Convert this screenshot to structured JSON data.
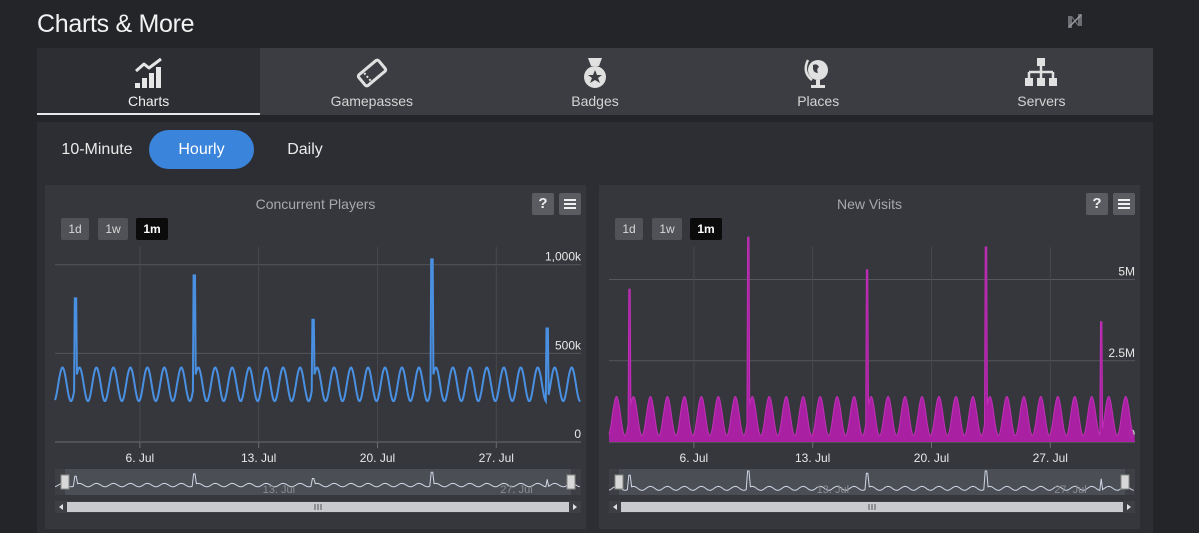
{
  "header": {
    "title": "Charts & More",
    "logo_icon": "n-logo-icon"
  },
  "tabs": [
    {
      "label": "Charts",
      "icon": "bar-chart-icon",
      "active": true
    },
    {
      "label": "Gamepasses",
      "icon": "ticket-icon",
      "active": false
    },
    {
      "label": "Badges",
      "icon": "medal-icon",
      "active": false
    },
    {
      "label": "Places",
      "icon": "globe-icon",
      "active": false
    },
    {
      "label": "Servers",
      "icon": "sitemap-icon",
      "active": false
    }
  ],
  "intervals": [
    {
      "label": "10-Minute",
      "active": false
    },
    {
      "label": "Hourly",
      "active": true
    },
    {
      "label": "Daily",
      "active": false
    }
  ],
  "ranges": [
    "1d",
    "1w",
    "1m"
  ],
  "active_range": "1m",
  "help_label": "?",
  "chart_data": [
    {
      "type": "line",
      "title": "Concurrent Players",
      "color": "#4a90e2",
      "ylim": [
        0,
        1100000
      ],
      "yticks": [
        0,
        500000,
        1000000
      ],
      "ytick_labels": [
        "0",
        "500k",
        "1,000k"
      ],
      "x_range": [
        "2023-07-01",
        "2023-07-31"
      ],
      "xtick_labels": [
        "6. Jul",
        "13. Jul",
        "20. Jul",
        "27. Jul"
      ],
      "navigator_labels": [
        "13. Jul",
        "27. Jul"
      ],
      "baseline_low": 230000,
      "baseline_high": 420000,
      "spikes": [
        {
          "day": 2.2,
          "value": 810000
        },
        {
          "day": 9.2,
          "value": 940000
        },
        {
          "day": 16.2,
          "value": 690000
        },
        {
          "day": 23.2,
          "value": 1030000
        },
        {
          "day": 30.0,
          "value": 640000
        }
      ]
    },
    {
      "type": "area",
      "title": "New Visits",
      "color": "#b020a8",
      "ylim": [
        0,
        6000000
      ],
      "yticks": [
        0,
        2500000,
        5000000
      ],
      "ytick_labels": [
        "0",
        "2.5M",
        "5M"
      ],
      "x_range": [
        "2023-07-01",
        "2023-07-31"
      ],
      "xtick_labels": [
        "6. Jul",
        "13. Jul",
        "20. Jul",
        "27. Jul"
      ],
      "navigator_labels": [
        "13. Jul",
        "27. Jul"
      ],
      "baseline_low": 200000,
      "baseline_high": 1400000,
      "spikes": [
        {
          "day": 2.2,
          "value": 4700000
        },
        {
          "day": 9.2,
          "value": 6300000
        },
        {
          "day": 16.2,
          "value": 5300000
        },
        {
          "day": 23.2,
          "value": 6000000
        },
        {
          "day": 30.0,
          "value": 3700000
        }
      ]
    }
  ]
}
